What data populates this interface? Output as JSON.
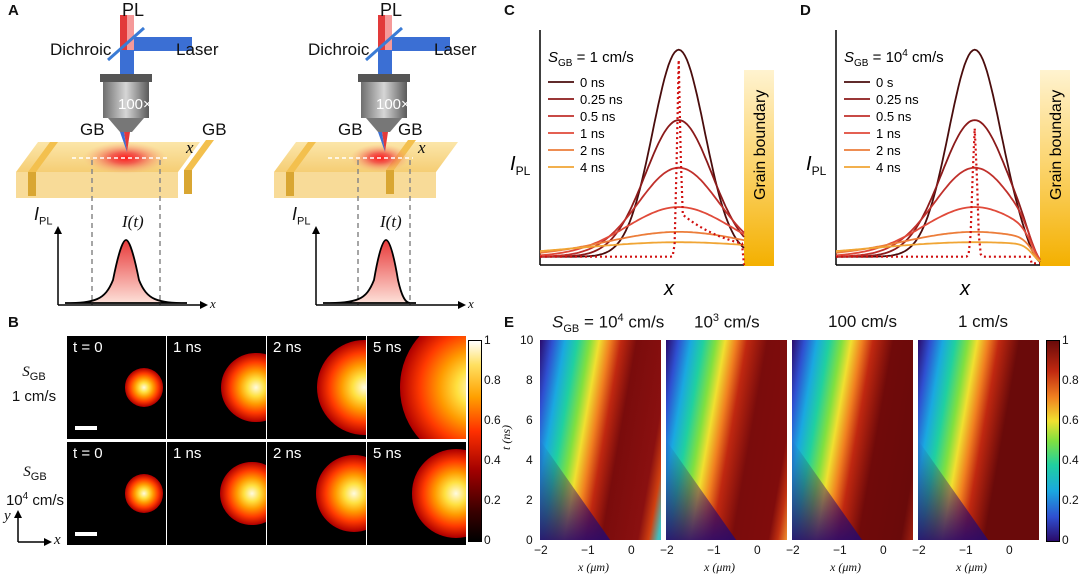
{
  "panelA": {
    "label": "A",
    "setups": [
      {
        "pl": "PL",
        "dichroic": "Dichroic",
        "laser": "Laser",
        "objective": "100×",
        "gb_left": "GB",
        "gb_right": "GB",
        "x": "x",
        "ipl": "I",
        "ipl_sub": "PL",
        "it": "I(t)",
        "axis_x": "x"
      },
      {
        "pl": "PL",
        "dichroic": "Dichroic",
        "laser": "Laser",
        "objective": "100×",
        "gb_left": "GB",
        "gb_right": "GB",
        "x": "x",
        "ipl": "I",
        "ipl_sub": "PL",
        "it": "I(t)",
        "axis_x": "x"
      }
    ]
  },
  "panelB": {
    "label": "B",
    "rows": [
      {
        "s_label": "S",
        "s_sub": "GB",
        "value": "1 cm/s",
        "frames": [
          "t = 0",
          "1 ns",
          "2 ns",
          "5 ns"
        ],
        "radii": [
          0.12,
          0.22,
          0.3,
          0.48
        ],
        "offsets": [
          0.0,
          0.12,
          0.2,
          0.32
        ]
      },
      {
        "s_label": "S",
        "s_sub": "GB",
        "value": "10",
        "value_sup": "4",
        "value_unit": " cm/s",
        "frames": [
          "t = 0",
          "1 ns",
          "2 ns",
          "5 ns"
        ],
        "radii": [
          0.12,
          0.2,
          0.24,
          0.28
        ],
        "offsets": [
          0.0,
          0.08,
          0.1,
          0.12
        ]
      }
    ],
    "colorbar_ticks": [
      "1",
      "0.8",
      "0.6",
      "0.4",
      "0.2",
      "0"
    ],
    "axis_y": "y",
    "axis_x": "x"
  },
  "panelC": {
    "label": "C",
    "title_s": "S",
    "title_sub": "GB",
    "title_val": " = 1 cm/s",
    "ylabel": "I",
    "ylabel_sub": "PL",
    "xlabel": "x",
    "gb_text": "Grain boundary",
    "legend": [
      "0 ns",
      "0.25 ns",
      "0.5 ns",
      "1 ns",
      "2 ns",
      "4 ns"
    ],
    "colors": [
      "#4a0d0d",
      "#8b1a1a",
      "#c0302b",
      "#e04a3a",
      "#ec7d3a",
      "#f0a535"
    ],
    "peaks": [
      1.0,
      0.66,
      0.43,
      0.24,
      0.12,
      0.07
    ],
    "widths": [
      0.18,
      0.23,
      0.28,
      0.36,
      0.5,
      0.7
    ]
  },
  "panelD": {
    "label": "D",
    "title_s": "S",
    "title_sub": "GB",
    "title_val": " = 10",
    "title_sup": "4",
    "title_unit": " cm/s",
    "ylabel": "I",
    "ylabel_sub": "PL",
    "xlabel": "x",
    "gb_text": "Grain boundary",
    "legend": [
      "0 s",
      "0.25 ns",
      "0.5 ns",
      "1 ns",
      "2 ns",
      "4 ns"
    ],
    "colors": [
      "#4a0d0d",
      "#8b1a1a",
      "#c0302b",
      "#e04a3a",
      "#ec7d3a",
      "#f0a535"
    ],
    "peaks": [
      1.0,
      0.66,
      0.43,
      0.24,
      0.12,
      0.07
    ],
    "widths": [
      0.18,
      0.23,
      0.28,
      0.36,
      0.5,
      0.7
    ]
  },
  "panelE": {
    "label": "E",
    "titles": [
      {
        "s": "S",
        "sub": "GB",
        "val": " = 10",
        "sup": "4",
        "unit": " cm/s"
      },
      {
        "s": "",
        "sub": "",
        "val": "10",
        "sup": "3",
        "unit": " cm/s"
      },
      {
        "s": "",
        "sub": "",
        "val": "100 cm/s",
        "sup": "",
        "unit": ""
      },
      {
        "s": "",
        "sub": "",
        "val": "1 cm/s",
        "sup": "",
        "unit": ""
      }
    ],
    "ylabel": "t (ns)",
    "xlabel": "x (μm)",
    "yticks": [
      "10",
      "8",
      "6",
      "4",
      "2",
      "0"
    ],
    "xticks": [
      "−2",
      "−1",
      "0"
    ],
    "colorbar_ticks": [
      "1",
      "0.8",
      "0.6",
      "0.4",
      "0.2",
      "0"
    ]
  }
}
